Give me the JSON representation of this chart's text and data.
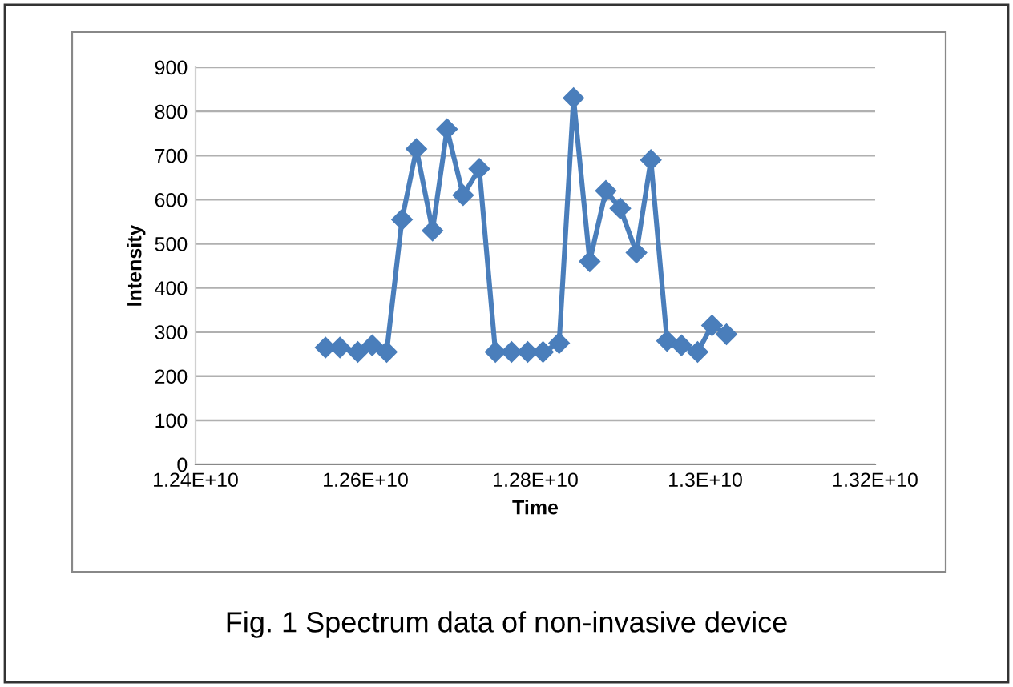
{
  "chart_data": {
    "type": "line",
    "xlabel": "Time",
    "ylabel": "Intensity",
    "x": [
      12553000000.0,
      12570000000.0,
      12591000000.0,
      12608000000.0,
      12625000000.0,
      12643000000.0,
      12660000000.0,
      12679000000.0,
      12696000000.0,
      12715000000.0,
      12734000000.0,
      12753000000.0,
      12772000000.0,
      12791000000.0,
      12809000000.0,
      12828000000.0,
      12845000000.0,
      12864000000.0,
      12883000000.0,
      12900000000.0,
      12919000000.0,
      12936000000.0,
      12955000000.0,
      12972000000.0,
      12991000000.0,
      13008000000.0,
      13025000000.0
    ],
    "series": [
      {
        "color": "#4a7ebb",
        "values": [
          265,
          265,
          255,
          270,
          255,
          555,
          715,
          530,
          760,
          610,
          670,
          255,
          255,
          255,
          255,
          275,
          830,
          460,
          620,
          580,
          480,
          690,
          280,
          270,
          255,
          315,
          295
        ]
      }
    ],
    "xlim": [
      12400000000.0,
      13200000000.0
    ],
    "xticks": [
      {
        "value": 12400000000.0,
        "label": "1.24E+10"
      },
      {
        "value": 12600000000.0,
        "label": "1.26E+10"
      },
      {
        "value": 12800000000.0,
        "label": "1.28E+10"
      },
      {
        "value": 13000000000.0,
        "label": "1.3E+10"
      },
      {
        "value": 13200000000.0,
        "label": "1.32E+10"
      }
    ],
    "ylim": [
      0,
      900
    ],
    "yticks": [
      0,
      100,
      200,
      300,
      400,
      500,
      600,
      700,
      800,
      900
    ],
    "grid": "y",
    "marker": "diamond",
    "line_style": "solid",
    "annotations": [
      "Fig. 1 Spectrum data of non-invasive device"
    ]
  }
}
